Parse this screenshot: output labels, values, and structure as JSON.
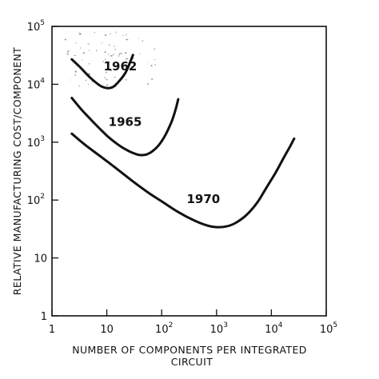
{
  "chart_data": {
    "type": "line",
    "xscale": "log",
    "yscale": "log",
    "xlim": [
      1,
      100000
    ],
    "ylim": [
      1,
      100000
    ],
    "xlabel_lines": [
      "NUMBER OF COMPONENTS PER INTEGRATED",
      "CIRCUIT"
    ],
    "ylabel": "RELATIVE MANUFACTURING COST/COMPONENT",
    "x_ticks": [
      {
        "value": 1,
        "base": "1",
        "exp": ""
      },
      {
        "value": 10,
        "base": "10",
        "exp": ""
      },
      {
        "value": 100,
        "base": "10",
        "exp": "2"
      },
      {
        "value": 1000,
        "base": "10",
        "exp": "3"
      },
      {
        "value": 10000,
        "base": "10",
        "exp": "4"
      },
      {
        "value": 100000,
        "base": "10",
        "exp": "5"
      }
    ],
    "y_ticks": [
      {
        "value": 1,
        "base": "1",
        "exp": ""
      },
      {
        "value": 10,
        "base": "10",
        "exp": ""
      },
      {
        "value": 100,
        "base": "10",
        "exp": "2"
      },
      {
        "value": 1000,
        "base": "10",
        "exp": "3"
      },
      {
        "value": 10000,
        "base": "10",
        "exp": "4"
      },
      {
        "value": 100000,
        "base": "10",
        "exp": "5"
      }
    ],
    "grid": false,
    "series": [
      {
        "name": "1962",
        "x": [
          2.3,
          3.2,
          5,
          7.5,
          10,
          13,
          17,
          22,
          27,
          30
        ],
        "y": [
          27000,
          20000,
          13000,
          9500,
          8600,
          9000,
          11500,
          16000,
          25000,
          32000
        ]
      },
      {
        "name": "1965",
        "x": [
          2.3,
          3.5,
          6,
          10,
          15,
          22,
          30,
          40,
          55,
          80,
          110,
          150,
          180,
          200
        ],
        "y": [
          5800,
          3600,
          2100,
          1300,
          950,
          750,
          650,
          600,
          620,
          800,
          1200,
          2200,
          3700,
          5500
        ]
      },
      {
        "name": "1970",
        "x": [
          2.3,
          4,
          8,
          15,
          30,
          60,
          100,
          200,
          400,
          700,
          1000,
          1500,
          2200,
          3500,
          5500,
          8000,
          12000,
          17000,
          22000,
          26000
        ],
        "y": [
          1400,
          900,
          550,
          350,
          210,
          130,
          95,
          62,
          44,
          36,
          34,
          35,
          40,
          55,
          90,
          160,
          300,
          550,
          850,
          1150
        ]
      }
    ]
  }
}
